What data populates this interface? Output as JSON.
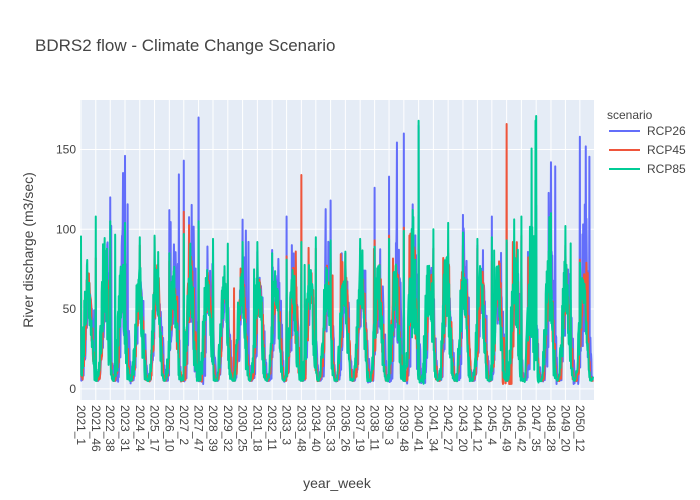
{
  "chart_data": {
    "type": "line",
    "title": "BDRS2 flow - Climate Change Scenario",
    "xlabel": "year_week",
    "ylabel": "River discharge (m3/sec)",
    "ylim": [
      -7,
      181
    ],
    "yticks": [
      0,
      50,
      100,
      150
    ],
    "x_start_year": 2021,
    "x_end_year": 2050,
    "weeks_per_year": 52,
    "x_tick_labels": [
      "2021_1",
      "2021_46",
      "2022_38",
      "2023_31",
      "2024_24",
      "2025_17",
      "2026_10",
      "2027_2",
      "2027_47",
      "2028_39",
      "2029_32",
      "2030_25",
      "2031_18",
      "2032_11",
      "2033_3",
      "2033_48",
      "2034_40",
      "2035_33",
      "2036_26",
      "2037_19",
      "2038_11",
      "2039_3",
      "2039_48",
      "2040_41",
      "2041_34",
      "2042_27",
      "2043_20",
      "2044_12",
      "2045_4",
      "2045_49",
      "2046_42",
      "2047_35",
      "2048_28",
      "2049_20",
      "2050_12"
    ],
    "grid": true,
    "legend": {
      "title": "scenario",
      "position": "right"
    },
    "series": [
      {
        "name": "RCP26",
        "color": "#636efa",
        "peaks": [
          {
            "x": "2021_1",
            "v": 60
          },
          {
            "x": "2021_46",
            "v": 60
          },
          {
            "x": "2022_38",
            "v": 120
          },
          {
            "x": "2023_31",
            "v": 146
          },
          {
            "x": "2024_24",
            "v": 77
          },
          {
            "x": "2025_17",
            "v": 62
          },
          {
            "x": "2026_10",
            "v": 112
          },
          {
            "x": "2027_2",
            "v": 143
          },
          {
            "x": "2027_47",
            "v": 170
          },
          {
            "x": "2028_39",
            "v": 93
          },
          {
            "x": "2029_32",
            "v": 61
          },
          {
            "x": "2030_25",
            "v": 106
          },
          {
            "x": "2031_18",
            "v": 86
          },
          {
            "x": "2032_11",
            "v": 87
          },
          {
            "x": "2033_3",
            "v": 108
          },
          {
            "x": "2033_48",
            "v": 72
          },
          {
            "x": "2034_40",
            "v": 75
          },
          {
            "x": "2035_33",
            "v": 118
          },
          {
            "x": "2036_26",
            "v": 85
          },
          {
            "x": "2037_19",
            "v": 87
          },
          {
            "x": "2038_11",
            "v": 126
          },
          {
            "x": "2039_3",
            "v": 133
          },
          {
            "x": "2039_48",
            "v": 160
          },
          {
            "x": "2040_41",
            "v": 165
          },
          {
            "x": "2041_34",
            "v": 88
          },
          {
            "x": "2042_27",
            "v": 80
          },
          {
            "x": "2043_20",
            "v": 109
          },
          {
            "x": "2044_12",
            "v": 90
          },
          {
            "x": "2045_4",
            "v": 108
          },
          {
            "x": "2045_49",
            "v": 92
          },
          {
            "x": "2046_42",
            "v": 93
          },
          {
            "x": "2047_35",
            "v": 115
          },
          {
            "x": "2048_28",
            "v": 142
          },
          {
            "x": "2049_20",
            "v": 87
          },
          {
            "x": "2050_12",
            "v": 158
          }
        ]
      },
      {
        "name": "RCP45",
        "color": "#ef553b",
        "peaks": [
          {
            "x": "2021_1",
            "v": 85
          },
          {
            "x": "2021_46",
            "v": 82
          },
          {
            "x": "2022_38",
            "v": 87
          },
          {
            "x": "2023_31",
            "v": 86
          },
          {
            "x": "2024_24",
            "v": 90
          },
          {
            "x": "2025_17",
            "v": 95
          },
          {
            "x": "2026_10",
            "v": 80
          },
          {
            "x": "2027_2",
            "v": 111
          },
          {
            "x": "2027_47",
            "v": 102
          },
          {
            "x": "2028_39",
            "v": 78
          },
          {
            "x": "2029_32",
            "v": 68
          },
          {
            "x": "2030_25",
            "v": 80
          },
          {
            "x": "2031_18",
            "v": 76
          },
          {
            "x": "2032_11",
            "v": 67
          },
          {
            "x": "2033_3",
            "v": 83
          },
          {
            "x": "2033_48",
            "v": 134
          },
          {
            "x": "2034_40",
            "v": 88
          },
          {
            "x": "2035_33",
            "v": 79
          },
          {
            "x": "2036_26",
            "v": 85
          },
          {
            "x": "2037_19",
            "v": 88
          },
          {
            "x": "2038_11",
            "v": 93
          },
          {
            "x": "2039_3",
            "v": 96
          },
          {
            "x": "2039_48",
            "v": 101
          },
          {
            "x": "2040_41",
            "v": 91
          },
          {
            "x": "2041_34",
            "v": 88
          },
          {
            "x": "2042_27",
            "v": 85
          },
          {
            "x": "2043_20",
            "v": 90
          },
          {
            "x": "2044_12",
            "v": 88
          },
          {
            "x": "2045_4",
            "v": 80
          },
          {
            "x": "2045_49",
            "v": 166
          },
          {
            "x": "2046_42",
            "v": 96
          },
          {
            "x": "2047_35",
            "v": 83
          },
          {
            "x": "2048_28",
            "v": 93
          },
          {
            "x": "2049_20",
            "v": 90
          },
          {
            "x": "2050_12",
            "v": 81
          }
        ]
      },
      {
        "name": "RCP85",
        "color": "#00cc96",
        "peaks": [
          {
            "x": "2021_1",
            "v": 96
          },
          {
            "x": "2021_46",
            "v": 108
          },
          {
            "x": "2022_38",
            "v": 105
          },
          {
            "x": "2023_31",
            "v": 104
          },
          {
            "x": "2024_24",
            "v": 95
          },
          {
            "x": "2025_17",
            "v": 96
          },
          {
            "x": "2026_10",
            "v": 85
          },
          {
            "x": "2027_2",
            "v": 97
          },
          {
            "x": "2027_47",
            "v": 105
          },
          {
            "x": "2028_39",
            "v": 94
          },
          {
            "x": "2029_32",
            "v": 91
          },
          {
            "x": "2030_25",
            "v": 92
          },
          {
            "x": "2031_18",
            "v": 92
          },
          {
            "x": "2032_11",
            "v": 85
          },
          {
            "x": "2033_3",
            "v": 81
          },
          {
            "x": "2033_48",
            "v": 92
          },
          {
            "x": "2034_40",
            "v": 95
          },
          {
            "x": "2035_33",
            "v": 93
          },
          {
            "x": "2036_26",
            "v": 86
          },
          {
            "x": "2037_19",
            "v": 94
          },
          {
            "x": "2038_11",
            "v": 89
          },
          {
            "x": "2039_3",
            "v": 94
          },
          {
            "x": "2039_48",
            "v": 99
          },
          {
            "x": "2040_41",
            "v": 168
          },
          {
            "x": "2041_34",
            "v": 100
          },
          {
            "x": "2042_27",
            "v": 104
          },
          {
            "x": "2043_20",
            "v": 98
          },
          {
            "x": "2044_12",
            "v": 94
          },
          {
            "x": "2045_4",
            "v": 95
          },
          {
            "x": "2045_49",
            "v": 93
          },
          {
            "x": "2046_42",
            "v": 108
          },
          {
            "x": "2047_35",
            "v": 171
          },
          {
            "x": "2048_28",
            "v": 110
          },
          {
            "x": "2049_20",
            "v": 102
          },
          {
            "x": "2050_12",
            "v": 79
          }
        ]
      }
    ]
  }
}
